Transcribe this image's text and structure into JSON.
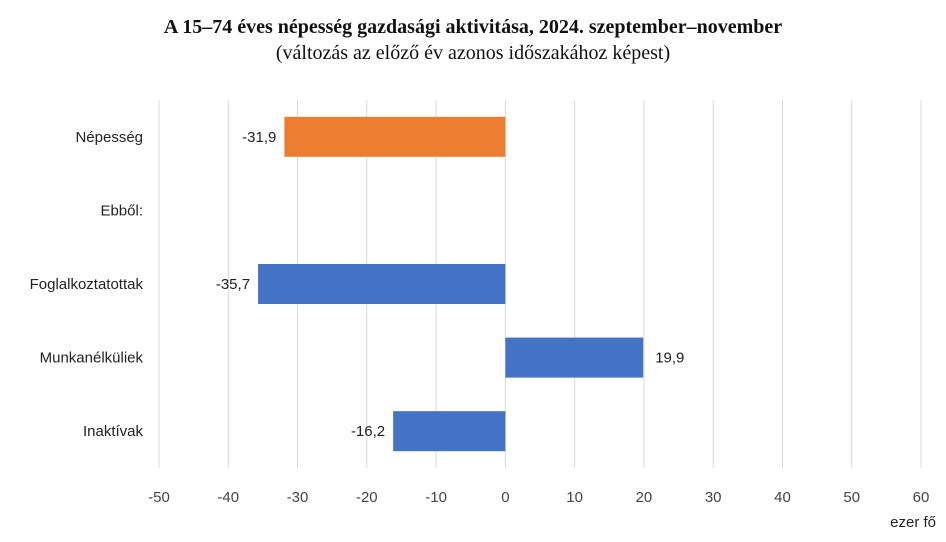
{
  "chart_data": {
    "type": "bar",
    "orientation": "horizontal",
    "title": "A 15–74 éves népesség gazdasági aktivitása, 2024. szeptember–november",
    "subtitle": "(változás az előző év azonos időszakához képest)",
    "unit_label": "ezer fő",
    "categories": [
      "Népesség",
      "Ebből:",
      "Foglalkoztatottak",
      "Munkanélküliek",
      "Inaktívak"
    ],
    "values": [
      -31.9,
      null,
      -35.7,
      19.9,
      -16.2
    ],
    "data_labels": [
      "-31,9",
      "",
      "-35,7",
      "19,9",
      "-16,2"
    ],
    "bar_colors": [
      "#ED7D31",
      null,
      "#4472C4",
      "#4472C4",
      "#4472C4"
    ],
    "xlim": [
      -50,
      60
    ],
    "xticks": [
      -50,
      -40,
      -30,
      -20,
      -10,
      0,
      10,
      20,
      30,
      40,
      50,
      60
    ],
    "grid": true
  }
}
